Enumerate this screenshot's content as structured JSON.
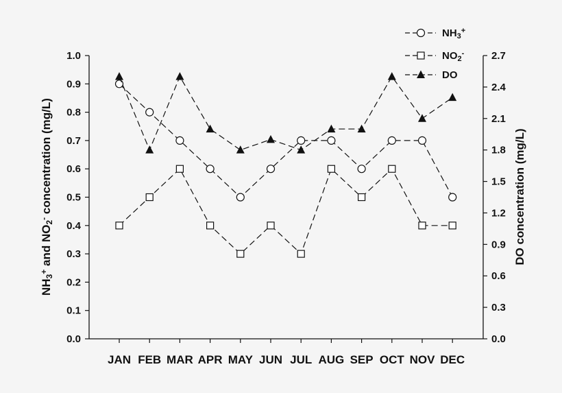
{
  "chart_data": {
    "type": "line",
    "title": "",
    "categories": [
      "JAN",
      "FEB",
      "MAR",
      "APR",
      "MAY",
      "JUN",
      "JUL",
      "AUG",
      "SEP",
      "OCT",
      "NOV",
      "DEC"
    ],
    "left_axis": {
      "label_parts": [
        "NH",
        "3",
        "+",
        " and NO",
        "2",
        "-",
        " concentration (mg/L)"
      ],
      "ylim": [
        0,
        1.0
      ],
      "ticks": [
        "0.0",
        "0.1",
        "0.2",
        "0.3",
        "0.4",
        "0.5",
        "0.6",
        "0.7",
        "0.8",
        "0.9",
        "1.0"
      ]
    },
    "right_axis": {
      "label": "DO concentration (mg/L)",
      "ylim": [
        0,
        2.7
      ],
      "ticks": [
        "0.0",
        "0.3",
        "0.6",
        "0.9",
        "1.2",
        "1.5",
        "1.8",
        "2.1",
        "2.4",
        "2.7"
      ]
    },
    "series": [
      {
        "name": "NH3+",
        "name_parts": [
          "NH",
          "3",
          "+"
        ],
        "axis": "left",
        "marker": "open-circle",
        "values": [
          0.9,
          0.8,
          0.7,
          0.6,
          0.5,
          0.6,
          0.7,
          0.7,
          0.6,
          0.7,
          0.7,
          0.5
        ]
      },
      {
        "name": "NO2-",
        "name_parts": [
          "NO",
          "2",
          "-"
        ],
        "axis": "left",
        "marker": "open-square",
        "values": [
          0.4,
          0.5,
          0.6,
          0.4,
          0.3,
          0.4,
          0.3,
          0.6,
          0.5,
          0.6,
          0.4,
          0.4
        ]
      },
      {
        "name": "DO",
        "name_parts": [
          "DO",
          "",
          ""
        ],
        "axis": "right",
        "marker": "filled-triangle",
        "values": [
          2.5,
          1.8,
          2.5,
          2.0,
          1.8,
          1.9,
          1.8,
          2.0,
          2.0,
          2.5,
          2.1,
          2.3
        ]
      }
    ],
    "legend_position": "top-right",
    "grid": false,
    "line_style": "dashed",
    "colors": {
      "background": "#f5f5f5",
      "ink": "#111111",
      "marker_fill": "#ffffff"
    }
  }
}
